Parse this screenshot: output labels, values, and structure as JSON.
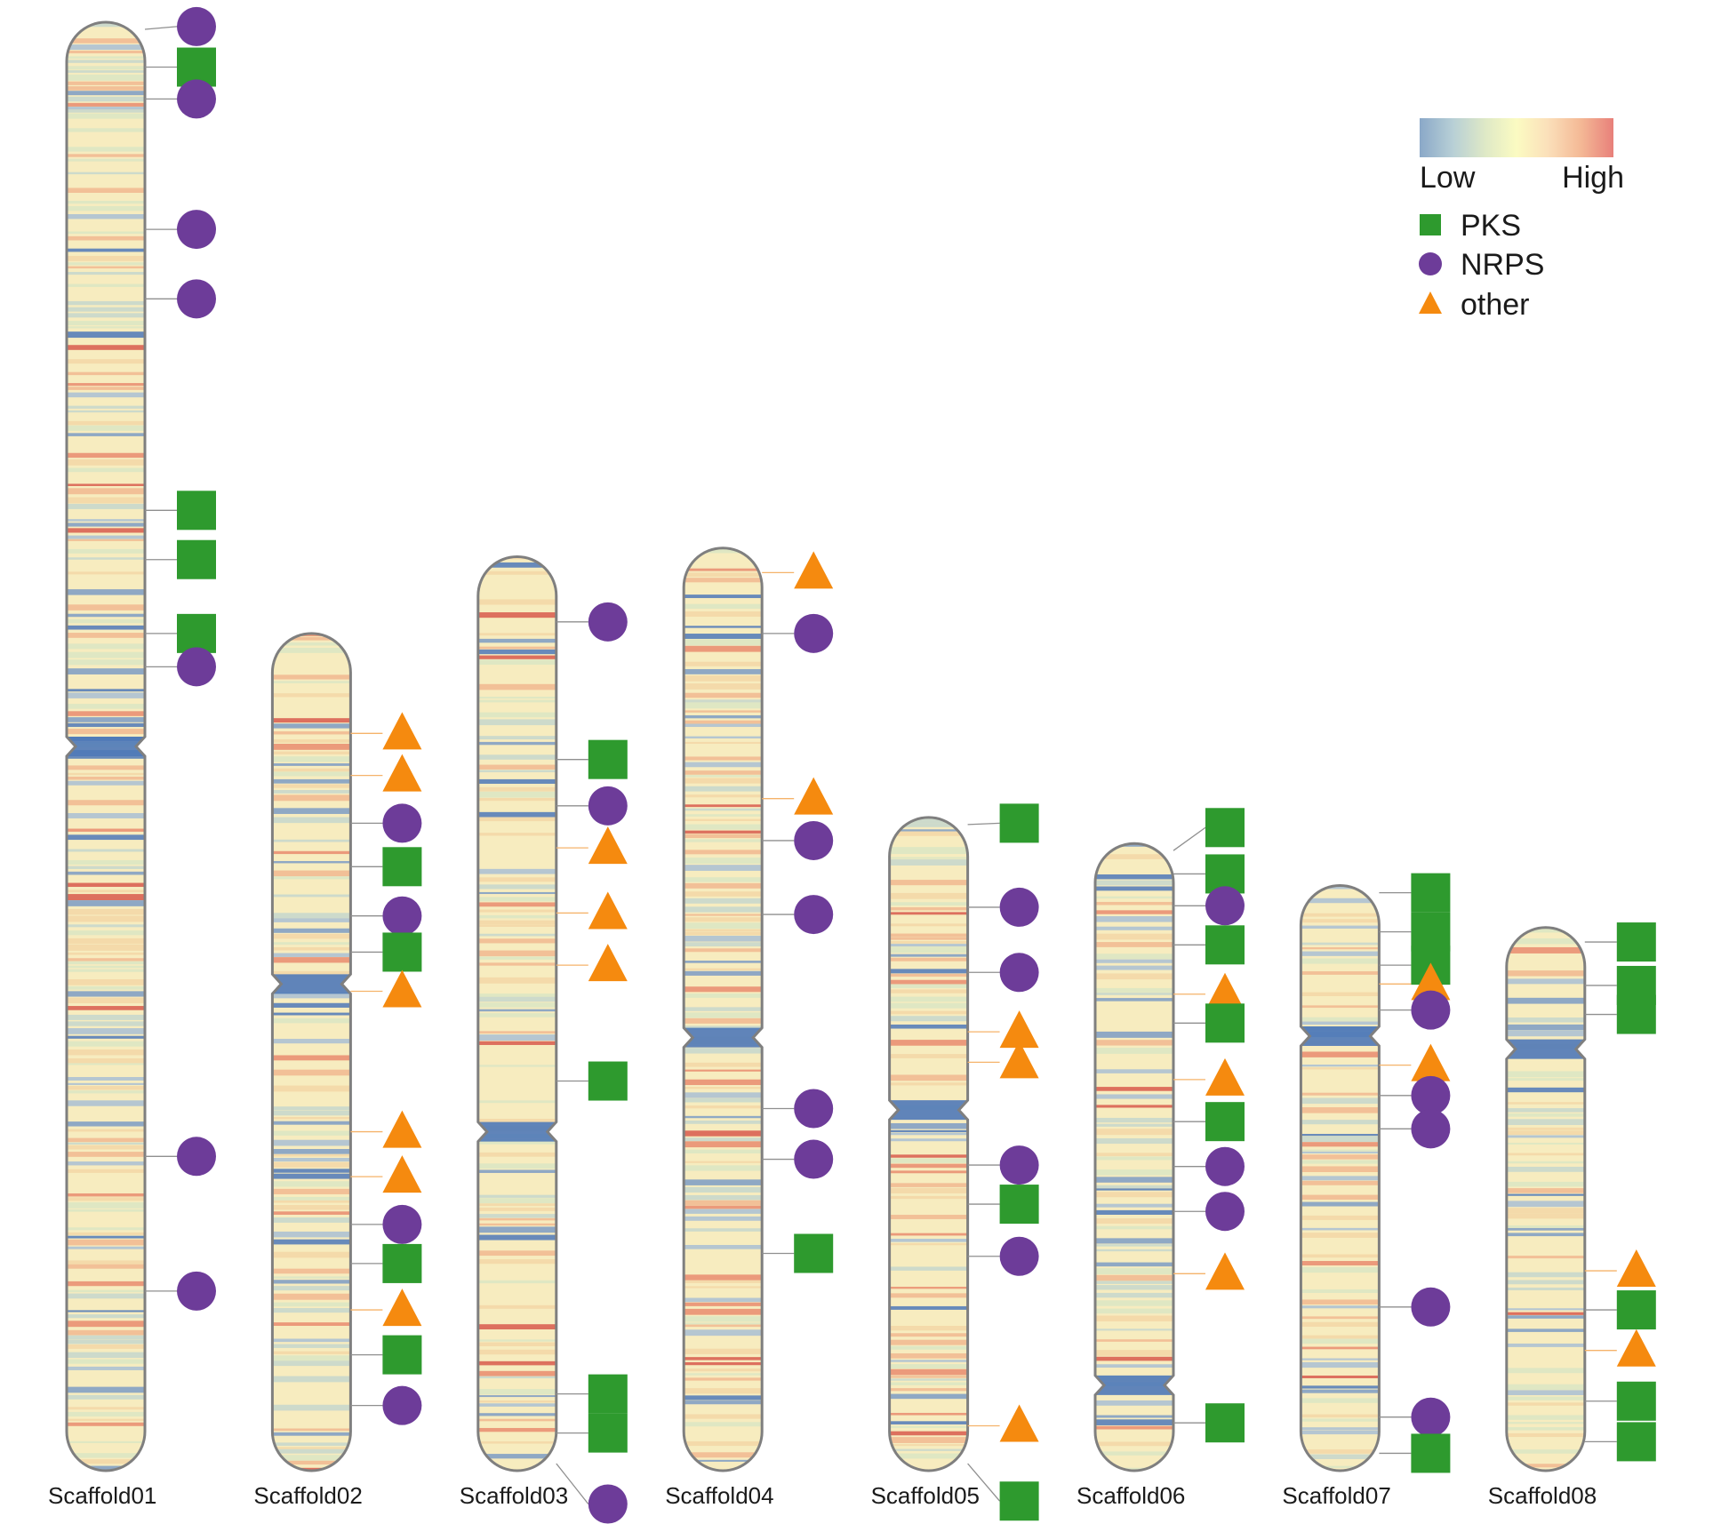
{
  "legend": {
    "gradient_low": "Low",
    "gradient_high": "High",
    "gradient_colors": [
      "#8aa8c8",
      "#b7cfd6",
      "#dfe9c6",
      "#fbfbc2",
      "#fbe0ba",
      "#f4b996",
      "#e8807a"
    ],
    "items": [
      {
        "label": "PKS",
        "shape": "square",
        "icon": "pks-square-icon"
      },
      {
        "label": "NRPS",
        "shape": "circle",
        "icon": "nrps-circle-icon"
      },
      {
        "label": "other",
        "shape": "triangle",
        "icon": "other-triangle-icon"
      }
    ]
  },
  "colors": {
    "pks": "#2e9a2e",
    "nrps": "#6d3c99",
    "other": "#f58a0f",
    "outline": "#7f7f7f",
    "base": "#f7ecbf"
  },
  "chromosomes": [
    {
      "name": "Scaffold01",
      "length": 100,
      "centromere": 50,
      "markers": [
        {
          "type": "NRPS",
          "pos": 0.3,
          "lane": 0
        },
        {
          "type": "PKS",
          "pos": 3.1,
          "lane": 0
        },
        {
          "type": "NRPS",
          "pos": 5.3,
          "lane": 0
        },
        {
          "type": "NRPS",
          "pos": 14.3,
          "lane": 0
        },
        {
          "type": "NRPS",
          "pos": 19.1,
          "lane": 0
        },
        {
          "type": "PKS",
          "pos": 33.7,
          "lane": 0
        },
        {
          "type": "PKS",
          "pos": 37.1,
          "lane": 0
        },
        {
          "type": "PKS",
          "pos": 42.2,
          "lane": 0
        },
        {
          "type": "NRPS",
          "pos": 44.5,
          "lane": 0
        },
        {
          "type": "NRPS",
          "pos": 78.3,
          "lane": 0
        },
        {
          "type": "NRPS",
          "pos": 87.6,
          "lane": 0
        }
      ]
    },
    {
      "name": "Scaffold02",
      "length": 57.8,
      "centromere": 24.2,
      "markers": [
        {
          "type": "other",
          "pos": 6.9,
          "lane": 0
        },
        {
          "type": "other",
          "pos": 9.8,
          "lane": 0
        },
        {
          "type": "NRPS",
          "pos": 13.1,
          "lane": 0
        },
        {
          "type": "PKS",
          "pos": 16.1,
          "lane": 0
        },
        {
          "type": "NRPS",
          "pos": 19.5,
          "lane": 0
        },
        {
          "type": "PKS",
          "pos": 22.0,
          "lane": 0
        },
        {
          "type": "other",
          "pos": 24.7,
          "lane": 0
        },
        {
          "type": "other",
          "pos": 34.4,
          "lane": 0
        },
        {
          "type": "other",
          "pos": 37.5,
          "lane": 0
        },
        {
          "type": "NRPS",
          "pos": 40.8,
          "lane": 0
        },
        {
          "type": "PKS",
          "pos": 43.5,
          "lane": 0
        },
        {
          "type": "other",
          "pos": 46.7,
          "lane": 0
        },
        {
          "type": "PKS",
          "pos": 49.8,
          "lane": 0
        },
        {
          "type": "NRPS",
          "pos": 53.3,
          "lane": 0
        }
      ]
    },
    {
      "name": "Scaffold03",
      "length": 63.1,
      "centromere": 39.7,
      "markers": [
        {
          "type": "NRPS",
          "pos": 4.5,
          "lane": 0
        },
        {
          "type": "PKS",
          "pos": 14.0,
          "lane": 0
        },
        {
          "type": "NRPS",
          "pos": 17.2,
          "lane": 0
        },
        {
          "type": "other",
          "pos": 20.1,
          "lane": 0
        },
        {
          "type": "other",
          "pos": 24.6,
          "lane": 0
        },
        {
          "type": "other",
          "pos": 28.2,
          "lane": 0
        },
        {
          "type": "PKS",
          "pos": 36.2,
          "lane": 0
        },
        {
          "type": "PKS",
          "pos": 57.8,
          "lane": 0
        },
        {
          "type": "PKS",
          "pos": 60.5,
          "lane": 0
        },
        {
          "type": "NRPS",
          "pos": 65.4,
          "lane": 0
        }
      ]
    },
    {
      "name": "Scaffold04",
      "length": 63.7,
      "centromere": 33.8,
      "markers": [
        {
          "type": "other",
          "pos": 1.7,
          "lane": 0
        },
        {
          "type": "NRPS",
          "pos": 5.9,
          "lane": 0
        },
        {
          "type": "other",
          "pos": 17.3,
          "lane": 0
        },
        {
          "type": "NRPS",
          "pos": 20.2,
          "lane": 0
        },
        {
          "type": "NRPS",
          "pos": 25.3,
          "lane": 0
        },
        {
          "type": "NRPS",
          "pos": 38.7,
          "lane": 0
        },
        {
          "type": "NRPS",
          "pos": 42.2,
          "lane": 0
        },
        {
          "type": "PKS",
          "pos": 48.7,
          "lane": 0
        }
      ]
    },
    {
      "name": "Scaffold05",
      "length": 45.1,
      "centromere": 20.2,
      "markers": [
        {
          "type": "PKS",
          "pos": 0.4,
          "lane": 0
        },
        {
          "type": "NRPS",
          "pos": 6.2,
          "lane": 0
        },
        {
          "type": "NRPS",
          "pos": 10.7,
          "lane": 0
        },
        {
          "type": "other",
          "pos": 14.8,
          "lane": 0
        },
        {
          "type": "other",
          "pos": 16.9,
          "lane": 0
        },
        {
          "type": "NRPS",
          "pos": 24.0,
          "lane": 0
        },
        {
          "type": "PKS",
          "pos": 26.7,
          "lane": 0
        },
        {
          "type": "NRPS",
          "pos": 30.3,
          "lane": 0
        },
        {
          "type": "other",
          "pos": 42.0,
          "lane": 0
        },
        {
          "type": "PKS",
          "pos": 47.2,
          "lane": 0
        }
      ]
    },
    {
      "name": "Scaffold06",
      "length": 43.3,
      "centromere": 37.4,
      "markers": [
        {
          "type": "PKS",
          "pos": -1.1,
          "lane": 0
        },
        {
          "type": "PKS",
          "pos": 2.1,
          "lane": 0
        },
        {
          "type": "NRPS",
          "pos": 4.3,
          "lane": 0
        },
        {
          "type": "PKS",
          "pos": 7.0,
          "lane": 0
        },
        {
          "type": "other",
          "pos": 10.4,
          "lane": 0
        },
        {
          "type": "PKS",
          "pos": 12.4,
          "lane": 0
        },
        {
          "type": "other",
          "pos": 16.3,
          "lane": 0
        },
        {
          "type": "PKS",
          "pos": 19.2,
          "lane": 0
        },
        {
          "type": "NRPS",
          "pos": 22.3,
          "lane": 0
        },
        {
          "type": "NRPS",
          "pos": 25.4,
          "lane": 0
        },
        {
          "type": "other",
          "pos": 29.7,
          "lane": 0
        },
        {
          "type": "PKS",
          "pos": 40.0,
          "lane": 0
        }
      ]
    },
    {
      "name": "Scaffold07",
      "length": 40.4,
      "centromere": 10.4,
      "markers": [
        {
          "type": "PKS",
          "pos": 0.5,
          "lane": 0
        },
        {
          "type": "PKS",
          "pos": 3.2,
          "lane": 0
        },
        {
          "type": "PKS",
          "pos": 5.5,
          "lane": 0
        },
        {
          "type": "other",
          "pos": 6.8,
          "lane": 0
        },
        {
          "type": "NRPS",
          "pos": 8.6,
          "lane": 0
        },
        {
          "type": "other",
          "pos": 12.4,
          "lane": 0
        },
        {
          "type": "NRPS",
          "pos": 14.5,
          "lane": 0
        },
        {
          "type": "NRPS",
          "pos": 16.8,
          "lane": 0
        },
        {
          "type": "NRPS",
          "pos": 29.1,
          "lane": 0
        },
        {
          "type": "NRPS",
          "pos": 36.7,
          "lane": 0
        },
        {
          "type": "PKS",
          "pos": 39.2,
          "lane": 0
        }
      ]
    },
    {
      "name": "Scaffold08",
      "length": 37.5,
      "centromere": 8.4,
      "markers": [
        {
          "type": "PKS",
          "pos": 1.0,
          "lane": 0
        },
        {
          "type": "PKS",
          "pos": 4.0,
          "lane": 0
        },
        {
          "type": "PKS",
          "pos": 6.0,
          "lane": 0
        },
        {
          "type": "other",
          "pos": 23.7,
          "lane": 0
        },
        {
          "type": "PKS",
          "pos": 26.4,
          "lane": 0
        },
        {
          "type": "other",
          "pos": 29.2,
          "lane": 0
        },
        {
          "type": "PKS",
          "pos": 32.7,
          "lane": 0
        },
        {
          "type": "PKS",
          "pos": 35.5,
          "lane": 0
        }
      ]
    }
  ]
}
